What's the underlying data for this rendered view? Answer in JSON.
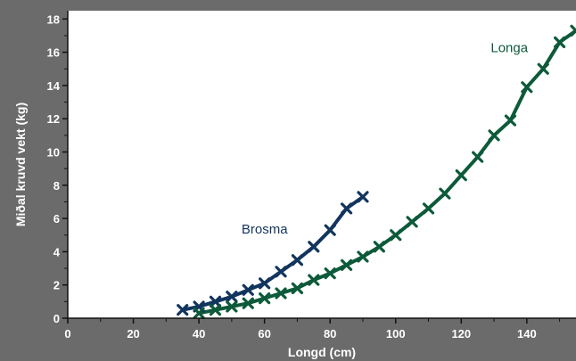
{
  "chart_data": {
    "type": "line",
    "xlabel": "Longd (cm)",
    "ylabel": "Miðal kruvd vekt (kg)",
    "xlim": [
      0,
      155
    ],
    "ylim": [
      0,
      18.5
    ],
    "xticks": [
      0,
      20,
      40,
      60,
      80,
      100,
      120,
      140
    ],
    "yticks": [
      0,
      2,
      4,
      6,
      8,
      10,
      12,
      14,
      16,
      18
    ],
    "grid": false,
    "background": "#6b6b6b",
    "plot_background": "#ffffff",
    "series": [
      {
        "name": "Brosma",
        "color": "#12355e",
        "x": [
          35,
          40,
          45,
          50,
          55,
          60,
          65,
          70,
          75,
          80,
          85,
          90
        ],
        "y": [
          0.5,
          0.7,
          1.0,
          1.3,
          1.7,
          2.1,
          2.8,
          3.5,
          4.3,
          5.3,
          6.6,
          7.3
        ]
      },
      {
        "name": "Longa",
        "color": "#0d5a3a",
        "x": [
          40,
          45,
          50,
          55,
          60,
          65,
          70,
          75,
          80,
          85,
          90,
          95,
          100,
          105,
          110,
          115,
          120,
          125,
          130,
          135,
          140,
          145,
          150,
          155
        ],
        "y": [
          0.3,
          0.5,
          0.7,
          0.9,
          1.2,
          1.5,
          1.8,
          2.3,
          2.7,
          3.2,
          3.7,
          4.3,
          5.0,
          5.8,
          6.6,
          7.5,
          8.6,
          9.7,
          11.0,
          11.9,
          13.9,
          15.0,
          16.6,
          17.3
        ]
      }
    ]
  }
}
